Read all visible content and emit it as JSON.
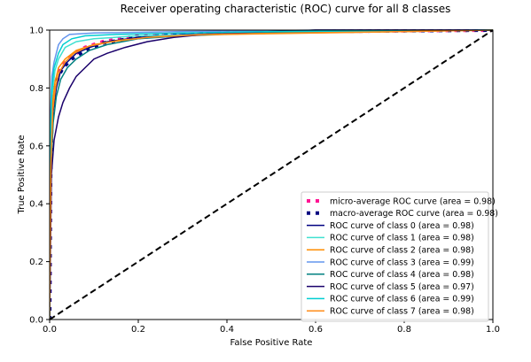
{
  "chart_data": {
    "type": "line",
    "title": "Receiver operating characteristic (ROC) curve for all 8 classes",
    "xlabel": "False Positive Rate",
    "ylabel": "True Positive Rate",
    "xlim": [
      0.0,
      1.0
    ],
    "ylim": [
      0.0,
      1.0
    ],
    "xticks": [
      "0.0",
      "0.2",
      "0.4",
      "0.6",
      "0.8",
      "1.0"
    ],
    "yticks": [
      "0.0",
      "0.2",
      "0.4",
      "0.6",
      "0.8",
      "1.0"
    ],
    "grid": false,
    "legend_position": "lower-right",
    "chance_line": {
      "x": [
        0,
        1
      ],
      "y": [
        0,
        1
      ],
      "color": "#000000",
      "style": "dashed"
    },
    "series": [
      {
        "name": "micro-average ROC curve (area = 0.98)",
        "color": "#ff1493",
        "style": "dotted",
        "x": [
          0,
          0.002,
          0.005,
          0.01,
          0.02,
          0.03,
          0.05,
          0.08,
          0.12,
          0.2,
          0.3,
          0.4,
          0.6,
          0.8,
          1.0
        ],
        "y": [
          0,
          0.5,
          0.72,
          0.8,
          0.85,
          0.88,
          0.91,
          0.94,
          0.96,
          0.98,
          0.985,
          0.99,
          0.995,
          0.998,
          1.0
        ]
      },
      {
        "name": "macro-average ROC curve (area = 0.98)",
        "color": "#000080",
        "style": "dotted",
        "x": [
          0,
          0.002,
          0.005,
          0.01,
          0.02,
          0.03,
          0.05,
          0.08,
          0.12,
          0.2,
          0.3,
          0.4,
          0.6,
          0.8,
          1.0
        ],
        "y": [
          0,
          0.48,
          0.7,
          0.79,
          0.84,
          0.87,
          0.9,
          0.93,
          0.955,
          0.975,
          0.985,
          0.99,
          0.995,
          0.998,
          1.0
        ]
      },
      {
        "name": "ROC curve of class 0 (area = 0.98)",
        "color": "#000080",
        "style": "solid",
        "x": [
          0,
          0.003,
          0.008,
          0.015,
          0.025,
          0.04,
          0.06,
          0.09,
          0.13,
          0.2,
          0.3,
          0.45,
          0.6,
          1.0
        ],
        "y": [
          0,
          0.55,
          0.72,
          0.8,
          0.86,
          0.89,
          0.92,
          0.94,
          0.96,
          0.975,
          0.985,
          0.99,
          1.0,
          1.0
        ]
      },
      {
        "name": "ROC curve of class 1 (area = 0.98)",
        "color": "#40e0d0",
        "style": "solid",
        "x": [
          0,
          0.002,
          0.006,
          0.012,
          0.02,
          0.035,
          0.06,
          0.1,
          0.2,
          0.35,
          0.55,
          0.8,
          1.0
        ],
        "y": [
          0,
          0.62,
          0.78,
          0.86,
          0.9,
          0.94,
          0.96,
          0.97,
          0.98,
          0.985,
          0.99,
          0.995,
          1.0
        ]
      },
      {
        "name": "ROC curve of class 2 (area = 0.98)",
        "color": "#ff8c00",
        "style": "solid",
        "x": [
          0,
          0.002,
          0.006,
          0.012,
          0.02,
          0.035,
          0.06,
          0.1,
          0.16,
          0.25,
          0.4,
          0.6,
          0.8,
          1.0
        ],
        "y": [
          0,
          0.56,
          0.74,
          0.82,
          0.87,
          0.9,
          0.93,
          0.95,
          0.965,
          0.978,
          0.985,
          0.99,
          0.995,
          1.0
        ]
      },
      {
        "name": "ROC curve of class 3 (area = 0.99)",
        "color": "#6495ed",
        "style": "solid",
        "x": [
          0,
          0.002,
          0.005,
          0.01,
          0.015,
          0.02,
          0.03,
          0.045,
          0.1,
          0.3,
          0.6,
          1.0
        ],
        "y": [
          0,
          0.7,
          0.84,
          0.89,
          0.92,
          0.95,
          0.97,
          0.985,
          0.99,
          0.995,
          1.0,
          1.0
        ]
      },
      {
        "name": "ROC curve of class 4 (area = 0.98)",
        "color": "#008080",
        "style": "solid",
        "x": [
          0,
          0.003,
          0.008,
          0.015,
          0.025,
          0.04,
          0.06,
          0.09,
          0.13,
          0.2,
          0.3,
          0.45,
          0.7,
          1.0
        ],
        "y": [
          0,
          0.52,
          0.68,
          0.77,
          0.83,
          0.87,
          0.9,
          0.93,
          0.95,
          0.97,
          0.98,
          0.99,
          0.995,
          1.0
        ]
      },
      {
        "name": "ROC curve of class 5 (area = 0.97)",
        "color": "#1a006b",
        "style": "solid",
        "x": [
          0,
          0.004,
          0.01,
          0.02,
          0.03,
          0.045,
          0.06,
          0.08,
          0.1,
          0.13,
          0.17,
          0.22,
          0.28,
          0.35,
          0.46,
          0.6,
          1.0
        ],
        "y": [
          0,
          0.5,
          0.62,
          0.7,
          0.75,
          0.8,
          0.84,
          0.87,
          0.9,
          0.92,
          0.94,
          0.96,
          0.975,
          0.985,
          0.993,
          1.0,
          1.0
        ]
      },
      {
        "name": "ROC curve of class 6 (area = 0.99)",
        "color": "#00ced1",
        "style": "solid",
        "x": [
          0,
          0.002,
          0.005,
          0.01,
          0.02,
          0.03,
          0.05,
          0.08,
          0.15,
          0.3,
          0.5,
          0.8,
          1.0
        ],
        "y": [
          0,
          0.64,
          0.8,
          0.87,
          0.92,
          0.95,
          0.97,
          0.98,
          0.985,
          0.99,
          0.995,
          0.998,
          1.0
        ]
      },
      {
        "name": "ROC curve of class 7 (area = 0.98)",
        "color": "#ff8c1a",
        "style": "solid",
        "x": [
          0,
          0.003,
          0.007,
          0.013,
          0.02,
          0.035,
          0.055,
          0.09,
          0.14,
          0.22,
          0.35,
          0.55,
          0.8,
          1.0
        ],
        "y": [
          0,
          0.54,
          0.72,
          0.8,
          0.85,
          0.89,
          0.92,
          0.945,
          0.96,
          0.975,
          0.985,
          0.99,
          0.995,
          1.0
        ]
      }
    ]
  }
}
